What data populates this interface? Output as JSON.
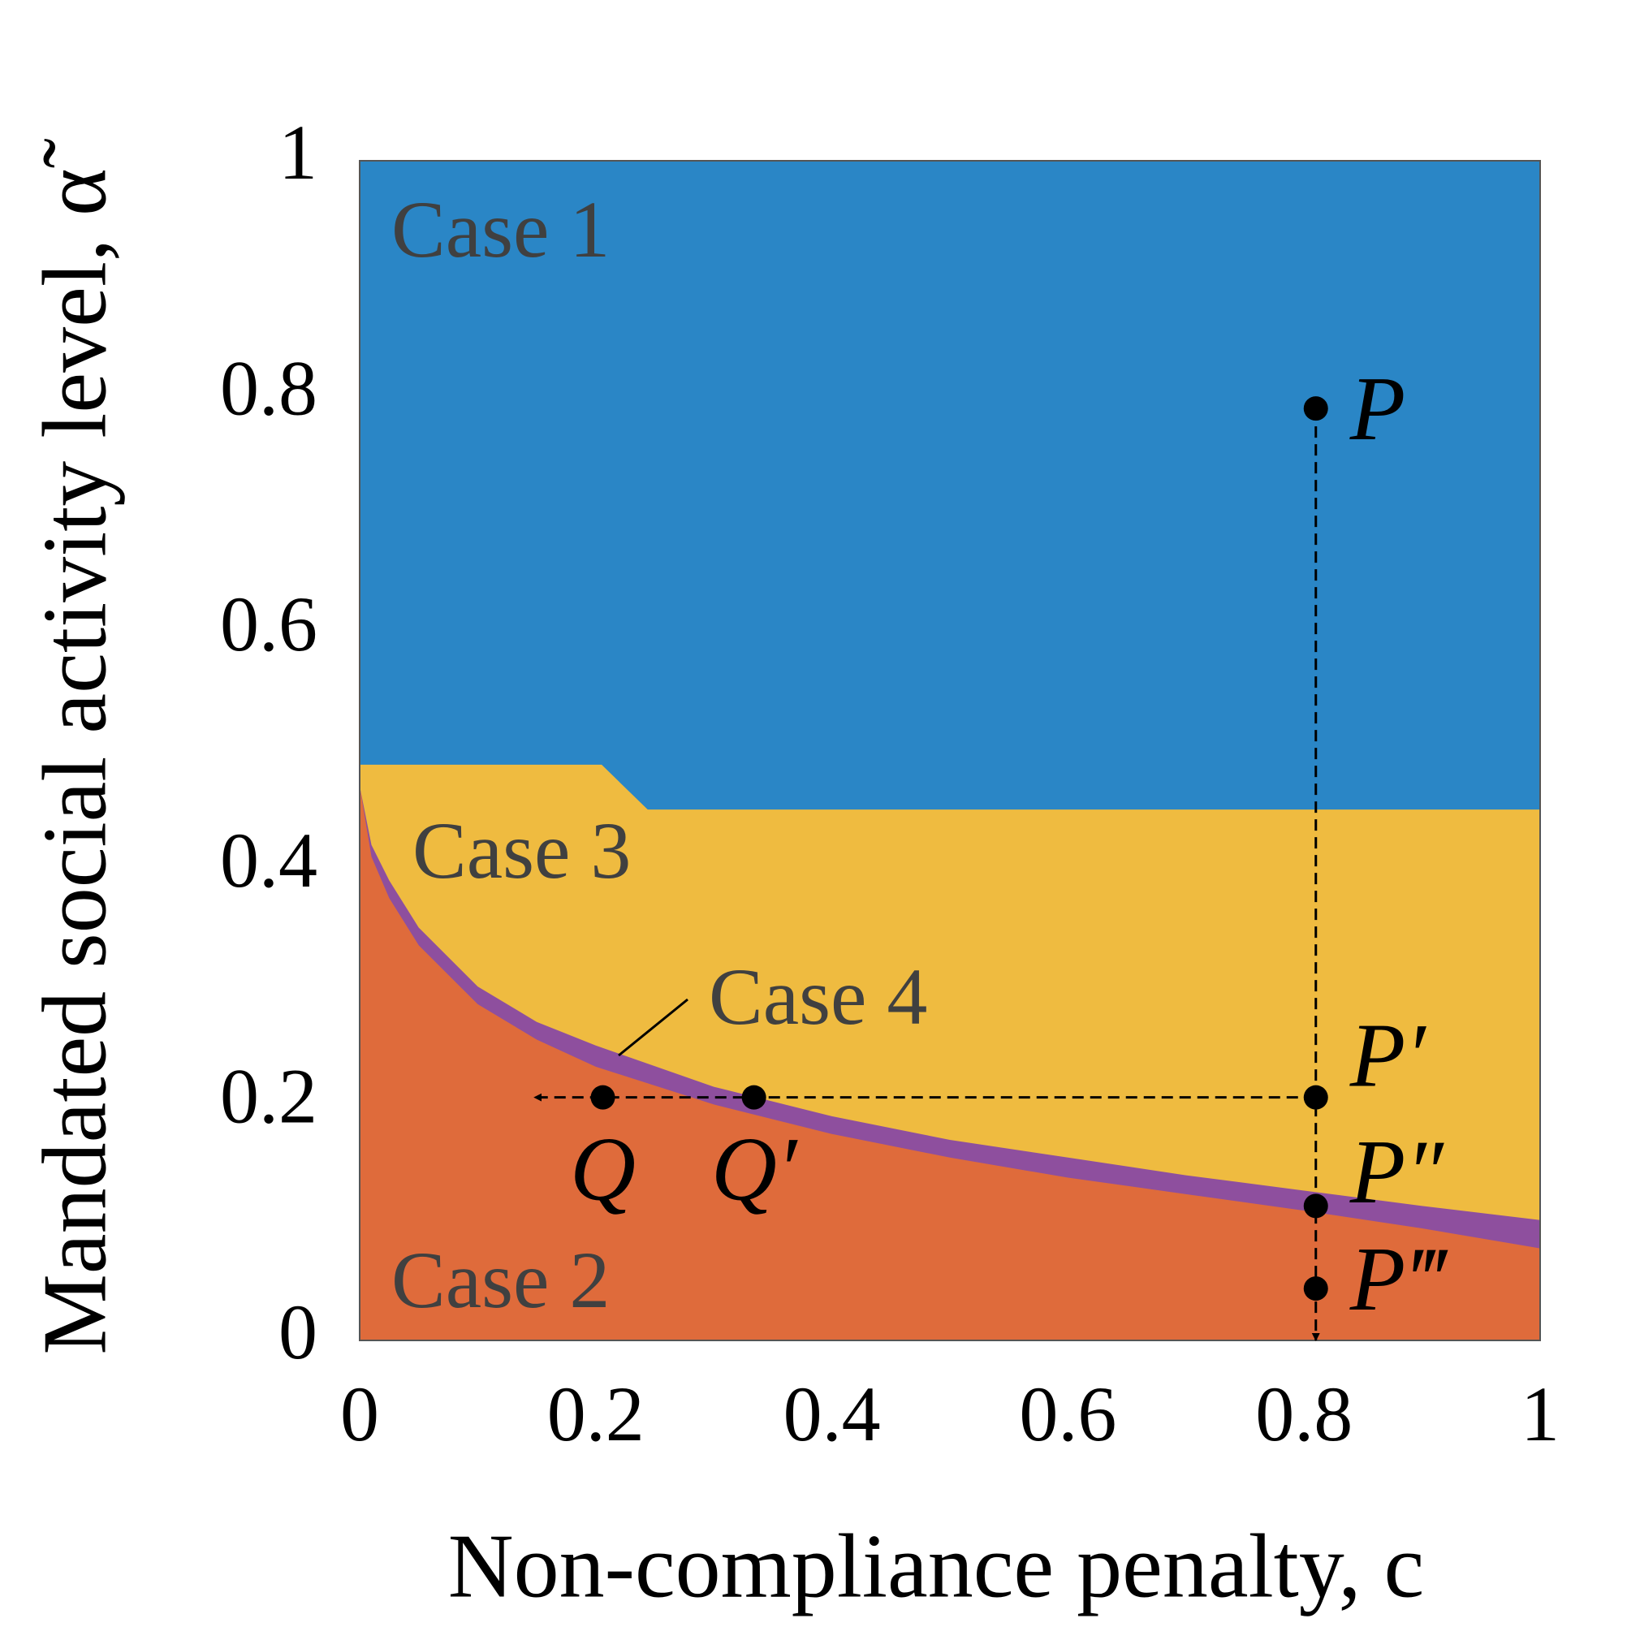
{
  "chart_data": {
    "type": "area",
    "xlabel": "Non-compliance penalty, c",
    "ylabel": "Mandated social activity level, α̃",
    "xlim": [
      0,
      1
    ],
    "ylim": [
      0,
      1
    ],
    "xticks": [
      0,
      0.2,
      0.4,
      0.6,
      0.8,
      1
    ],
    "yticks": [
      0,
      0.2,
      0.4,
      0.6,
      0.8,
      1
    ],
    "series": [
      {
        "name": "Case 1",
        "color": "#2a86c6",
        "x": [
          0,
          1
        ],
        "values": [
          1,
          1
        ]
      },
      {
        "name": "Case 3",
        "color": "#efbb40",
        "x": [
          0,
          0.205,
          0.244,
          1
        ],
        "values": [
          0.488,
          0.488,
          0.45,
          0.45
        ]
      },
      {
        "name": "Case 4",
        "color": "#8e4f9e",
        "x": [
          0,
          0.01,
          0.025,
          0.05,
          0.1,
          0.15,
          0.2,
          0.3,
          0.4,
          0.5,
          0.6,
          0.7,
          0.8,
          0.9,
          1
        ],
        "values": [
          0.47,
          0.42,
          0.39,
          0.35,
          0.3,
          0.27,
          0.25,
          0.215,
          0.19,
          0.17,
          0.155,
          0.14,
          0.127,
          0.114,
          0.102
        ]
      },
      {
        "name": "Case 2",
        "color": "#df6b3b",
        "x": [
          0,
          0.01,
          0.025,
          0.05,
          0.1,
          0.15,
          0.2,
          0.3,
          0.4,
          0.5,
          0.6,
          0.7,
          0.8,
          0.9,
          1
        ],
        "values": [
          0.47,
          0.41,
          0.375,
          0.335,
          0.285,
          0.255,
          0.232,
          0.2,
          0.175,
          0.155,
          0.138,
          0.124,
          0.11,
          0.095,
          0.078
        ]
      }
    ],
    "points": [
      {
        "label": "P",
        "x": 0.81,
        "y": 0.79
      },
      {
        "label": "P′",
        "x": 0.81,
        "y": 0.206
      },
      {
        "label": "P″",
        "x": 0.81,
        "y": 0.114
      },
      {
        "label": "P‴",
        "x": 0.81,
        "y": 0.044
      },
      {
        "label": "Q",
        "x": 0.206,
        "y": 0.206
      },
      {
        "label": "Q′",
        "x": 0.334,
        "y": 0.206
      }
    ],
    "arrows": [
      {
        "from": [
          0.81,
          0.79
        ],
        "to": [
          0.81,
          0
        ]
      },
      {
        "from": [
          0.81,
          0.206
        ],
        "to": [
          0.148,
          0.206
        ]
      }
    ]
  }
}
